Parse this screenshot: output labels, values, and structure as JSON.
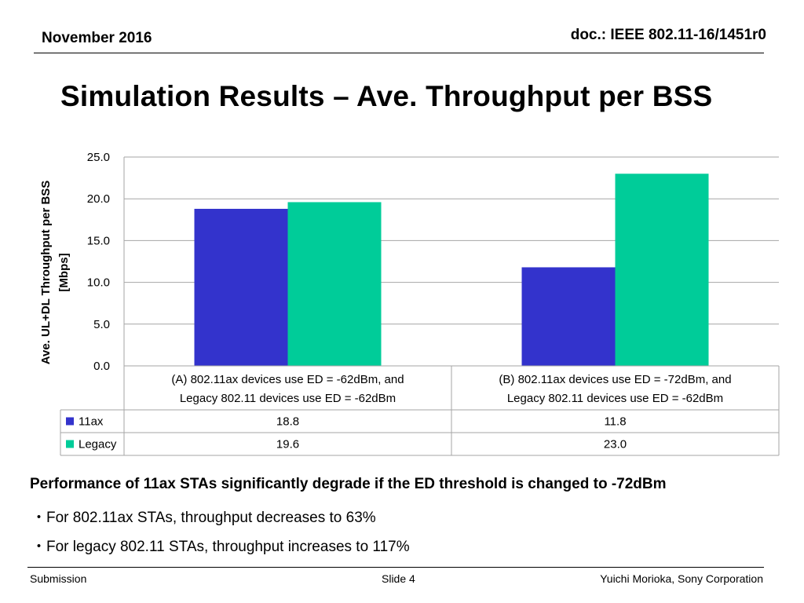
{
  "header": {
    "date": "November 2016",
    "doc_id": "doc.: IEEE 802.11-16/1451r0"
  },
  "slide_title": "Simulation Results – Ave. Throughput per BSS",
  "chart_data": {
    "type": "bar",
    "ylabel_line1": "Ave. UL+DL Throughput per BSS",
    "ylabel_line2": "[Mbps]",
    "ylim": [
      0,
      25
    ],
    "yticks": [
      "0.0",
      "5.0",
      "10.0",
      "15.0",
      "20.0",
      "25.0"
    ],
    "grid": true,
    "categories": [
      [
        "(A) 802.11ax devices use ED = -62dBm, and",
        "Legacy 802.11 devices use ED = -62dBm"
      ],
      [
        "(B) 802.11ax devices use ED = -72dBm, and",
        "Legacy 802.11 devices use ED = -62dBm"
      ]
    ],
    "series": [
      {
        "name": "11ax",
        "color": "#3333cc",
        "values": [
          18.8,
          11.8
        ],
        "labels": [
          "18.8",
          "11.8"
        ]
      },
      {
        "name": "Legacy",
        "color": "#00cc99",
        "values": [
          19.6,
          23.0
        ],
        "labels": [
          "19.6",
          "23.0"
        ]
      }
    ],
    "legend": "data-table"
  },
  "summary": {
    "headline": "Performance of 11ax STAs significantly degrade if the ED threshold is changed to -72dBm",
    "bullets": [
      "・For 802.11ax STAs, throughput  decreases to 63%",
      "・For legacy 802.11 STAs,  throughput increases to 117%"
    ]
  },
  "footer": {
    "left": "Submission",
    "center": "Slide 4",
    "right": "Yuichi Morioka, Sony Corporation"
  }
}
